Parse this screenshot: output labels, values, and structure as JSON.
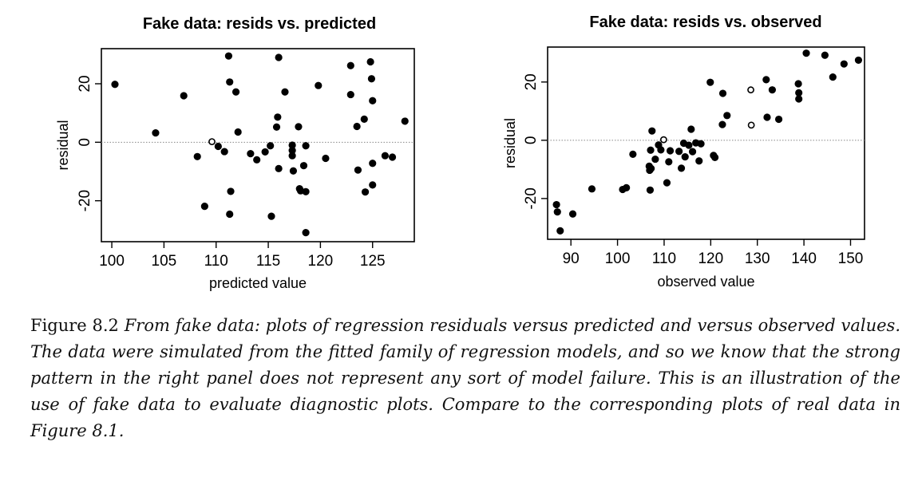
{
  "chart_data": [
    {
      "type": "scatter",
      "title": "Fake data:  resids vs. predicted",
      "xlabel": "predicted value",
      "ylabel": "residual",
      "xlim": [
        99,
        129
      ],
      "ylim": [
        -34,
        32
      ],
      "xticks": [
        100,
        105,
        110,
        115,
        120,
        125
      ],
      "yticks": [
        -20,
        0,
        20
      ],
      "reference_line_y": 0,
      "grid": false,
      "points": [
        [
          100.3,
          19.8
        ],
        [
          104.2,
          3.2
        ],
        [
          106.9,
          15.9
        ],
        [
          108.2,
          -4.9
        ],
        [
          108.9,
          -21.9
        ],
        [
          109.6,
          0.2
        ],
        [
          110.2,
          -1.4
        ],
        [
          110.8,
          -3.2
        ],
        [
          111.2,
          29.5
        ],
        [
          111.3,
          20.6
        ],
        [
          111.4,
          -16.8
        ],
        [
          111.3,
          -24.6
        ],
        [
          111.9,
          17.2
        ],
        [
          112.1,
          3.5
        ],
        [
          113.3,
          -3.9
        ],
        [
          113.9,
          -6.0
        ],
        [
          114.7,
          -3.3
        ],
        [
          115.2,
          -1.2
        ],
        [
          115.3,
          -25.3
        ],
        [
          115.8,
          5.2
        ],
        [
          115.9,
          8.6
        ],
        [
          116.0,
          29.0
        ],
        [
          116.0,
          -9.0
        ],
        [
          116.6,
          17.2
        ],
        [
          117.3,
          -1.0
        ],
        [
          117.3,
          -2.8
        ],
        [
          117.3,
          -4.6
        ],
        [
          117.4,
          -9.8
        ],
        [
          117.9,
          5.3
        ],
        [
          118.0,
          -15.9
        ],
        [
          118.1,
          -16.6
        ],
        [
          118.4,
          -8.0
        ],
        [
          118.6,
          -1.2
        ],
        [
          118.6,
          -16.9
        ],
        [
          118.6,
          -30.9
        ],
        [
          119.8,
          19.4
        ],
        [
          120.5,
          -5.5
        ],
        [
          122.9,
          26.2
        ],
        [
          122.9,
          16.3
        ],
        [
          123.5,
          5.4
        ],
        [
          123.6,
          -9.5
        ],
        [
          124.2,
          7.9
        ],
        [
          124.3,
          -17.0
        ],
        [
          124.8,
          27.5
        ],
        [
          124.9,
          21.7
        ],
        [
          125.0,
          14.2
        ],
        [
          125.0,
          -7.2
        ],
        [
          125.0,
          -14.6
        ],
        [
          126.2,
          -4.6
        ],
        [
          126.9,
          -5.1
        ],
        [
          128.1,
          7.2
        ]
      ],
      "open_points": [
        [
          109.6,
          0.2
        ]
      ]
    },
    {
      "type": "scatter",
      "title": "Fake data:  resids vs. observed",
      "xlabel": "observed value",
      "ylabel": "residual",
      "xlim": [
        85,
        153
      ],
      "ylim": [
        -34,
        32
      ],
      "xticks": [
        90,
        100,
        110,
        120,
        130,
        140,
        150
      ],
      "yticks": [
        -20,
        0,
        20
      ],
      "reference_line_y": 0,
      "grid": false,
      "points": [
        [
          86.9,
          -22.1
        ],
        [
          87.1,
          -24.6
        ],
        [
          87.7,
          -31.1
        ],
        [
          90.4,
          -25.3
        ],
        [
          94.5,
          -16.7
        ],
        [
          101.1,
          -16.9
        ],
        [
          101.9,
          -16.3
        ],
        [
          103.3,
          -4.8
        ],
        [
          106.8,
          -8.9
        ],
        [
          106.9,
          -10.3
        ],
        [
          107.0,
          -17.1
        ],
        [
          107.1,
          -3.4
        ],
        [
          107.2,
          -9.7
        ],
        [
          107.4,
          3.2
        ],
        [
          108.1,
          -6.5
        ],
        [
          108.8,
          -1.6
        ],
        [
          109.3,
          -3.3
        ],
        [
          109.9,
          0.2
        ],
        [
          110.6,
          -14.6
        ],
        [
          111.0,
          -7.4
        ],
        [
          111.3,
          -3.6
        ],
        [
          113.2,
          -3.8
        ],
        [
          113.7,
          -9.6
        ],
        [
          114.2,
          -1.0
        ],
        [
          114.5,
          -5.7
        ],
        [
          115.3,
          -1.7
        ],
        [
          115.8,
          3.8
        ],
        [
          116.1,
          -3.9
        ],
        [
          116.8,
          -0.9
        ],
        [
          117.5,
          -7.1
        ],
        [
          117.9,
          -1.2
        ],
        [
          119.9,
          19.9
        ],
        [
          120.6,
          -5.2
        ],
        [
          120.9,
          -5.9
        ],
        [
          122.6,
          16.1
        ],
        [
          122.5,
          5.4
        ],
        [
          123.5,
          8.5
        ],
        [
          128.6,
          17.3
        ],
        [
          128.7,
          5.2
        ],
        [
          131.9,
          20.8
        ],
        [
          132.1,
          7.9
        ],
        [
          133.2,
          17.3
        ],
        [
          134.6,
          7.2
        ],
        [
          138.8,
          19.4
        ],
        [
          138.9,
          14.2
        ],
        [
          138.9,
          16.3
        ],
        [
          140.5,
          29.9
        ],
        [
          144.5,
          29.2
        ],
        [
          146.2,
          21.7
        ],
        [
          148.6,
          26.2
        ],
        [
          151.7,
          27.5
        ]
      ],
      "open_points": [
        [
          109.9,
          0.2
        ],
        [
          128.6,
          17.3
        ],
        [
          128.7,
          5.2
        ]
      ]
    }
  ],
  "caption": {
    "label": "Figure 8.2",
    "text": "From fake data: plots of regression residuals versus predicted and versus observed values. The data were simulated from the fitted family of regression models, and so we know that the strong pattern in the right panel does not represent any sort of model failure. This is an illustration of the use of fake data to evaluate diagnostic plots. Compare to the corresponding plots of real data in Figure 8.1."
  }
}
